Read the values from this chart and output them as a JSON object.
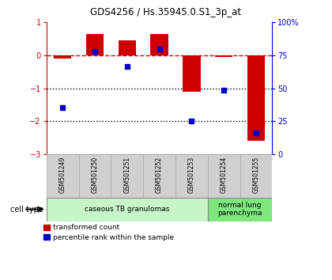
{
  "title": "GDS4256 / Hs.35945.0.S1_3p_at",
  "categories": [
    "GSM501249",
    "GSM501250",
    "GSM501251",
    "GSM501252",
    "GSM501253",
    "GSM501254",
    "GSM501255"
  ],
  "red_bars": [
    -0.1,
    0.65,
    0.45,
    0.65,
    -1.1,
    -0.05,
    -2.6
  ],
  "blue_dots_left_scale": [
    -1.6,
    0.12,
    -0.35,
    0.18,
    -2.0,
    -1.05,
    -2.35
  ],
  "ylim_left": [
    -3.0,
    1.0
  ],
  "ylim_right": [
    0,
    100
  ],
  "left_ticks": [
    -3,
    -2,
    -1,
    0,
    1
  ],
  "right_ticks": [
    0,
    25,
    50,
    75,
    100
  ],
  "right_tick_labels": [
    "0",
    "25",
    "50",
    "75",
    "100%"
  ],
  "cell_type_groups": [
    {
      "label": "caseous TB granulomas",
      "indices": [
        0,
        1,
        2,
        3,
        4
      ],
      "color": "#c8f5c8"
    },
    {
      "label": "normal lung\nparenchyma",
      "indices": [
        5,
        6
      ],
      "color": "#7de87d"
    }
  ],
  "red_bar_color": "#cc0000",
  "blue_dot_color": "#0000cc",
  "dashed_line_color": "#cc0000",
  "dotted_line_color": "#000000",
  "bg_color": "#ffffff",
  "sample_box_color": "#d0d0d0",
  "legend_red_label": "transformed count",
  "legend_blue_label": "percentile rank within the sample",
  "cell_type_label": "cell type",
  "bar_width": 0.55,
  "left_spine_color": "#cc0000",
  "right_spine_color": "#0000cc"
}
